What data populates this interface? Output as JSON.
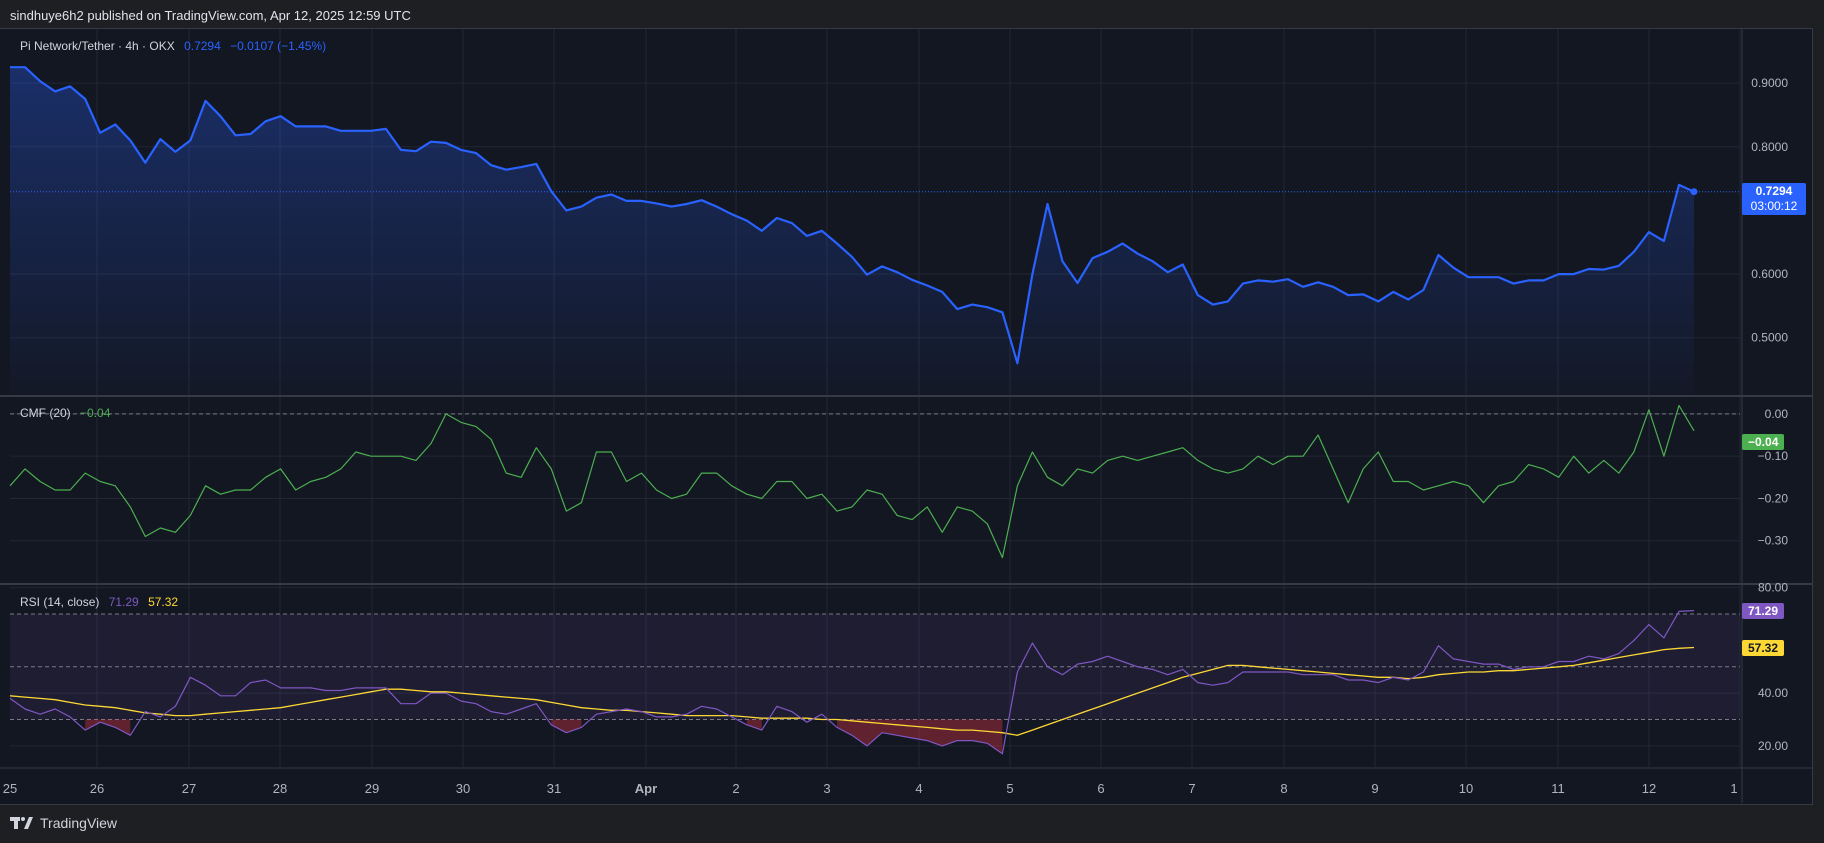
{
  "header": {
    "published": "sindhuye6h2 published on TradingView.com, Apr 12, 2025 12:59 UTC"
  },
  "footer": {
    "brand": "TradingView"
  },
  "colors": {
    "price": "#2962ff",
    "cmf": "#4caf50",
    "rsi": "#7e57c2",
    "rsi_ma": "#fdd835",
    "background": "#131722",
    "grid": "#232734"
  },
  "legends": {
    "price": {
      "symbol": "Pi Network/Tether · 4h · OKX",
      "last": "0.7294",
      "change": "−0.0107 (−1.45%)"
    },
    "cmf": {
      "name": "CMF (20)",
      "value": "−0.04"
    },
    "rsi": {
      "name": "RSI (14, close)",
      "value": "71.29",
      "ma": "57.32"
    }
  },
  "badges": {
    "price": "0.7294",
    "countdown": "03:00:12",
    "cmf": "−0.04",
    "rsi": "71.29",
    "rsi_ma": "57.32"
  },
  "chart_data": [
    {
      "type": "area",
      "title": "Pi Network/Tether · 4h · OKX",
      "x_ticks": [
        "25",
        "26",
        "27",
        "28",
        "29",
        "30",
        "31",
        "Apr",
        "2",
        "3",
        "4",
        "5",
        "6",
        "7",
        "8",
        "9",
        "10",
        "11",
        "12",
        "1"
      ],
      "y_ticks": [
        "0.9000",
        "0.8000",
        "0.6000",
        "0.5000"
      ],
      "y_tick_values": [
        0.9,
        0.8,
        0.6,
        0.5
      ],
      "ylim": [
        0.41,
        0.985
      ],
      "last_value": 0.7294,
      "grid": true,
      "series": [
        {
          "values": [
            0.925,
            0.925,
            0.903,
            0.887,
            0.895,
            0.875,
            0.822,
            0.835,
            0.81,
            0.775,
            0.812,
            0.792,
            0.81,
            0.872,
            0.848,
            0.818,
            0.82,
            0.84,
            0.848,
            0.832,
            0.832,
            0.832,
            0.825,
            0.825,
            0.825,
            0.828,
            0.795,
            0.793,
            0.808,
            0.806,
            0.795,
            0.79,
            0.771,
            0.764,
            0.768,
            0.773,
            0.73,
            0.7,
            0.706,
            0.72,
            0.725,
            0.715,
            0.715,
            0.711,
            0.706,
            0.71,
            0.716,
            0.706,
            0.694,
            0.684,
            0.668,
            0.688,
            0.68,
            0.66,
            0.668,
            0.648,
            0.627,
            0.599,
            0.612,
            0.603,
            0.591,
            0.582,
            0.572,
            0.545,
            0.552,
            0.548,
            0.54,
            0.46,
            0.6,
            0.71,
            0.62,
            0.586,
            0.625,
            0.635,
            0.648,
            0.632,
            0.62,
            0.603,
            0.615,
            0.567,
            0.552,
            0.557,
            0.585,
            0.59,
            0.588,
            0.592,
            0.58,
            0.587,
            0.58,
            0.567,
            0.568,
            0.557,
            0.572,
            0.56,
            0.575,
            0.63,
            0.61,
            0.595,
            0.595,
            0.595,
            0.585,
            0.59,
            0.59,
            0.6,
            0.6,
            0.608,
            0.607,
            0.613,
            0.635,
            0.666,
            0.652,
            0.74,
            0.7294
          ]
        }
      ]
    },
    {
      "type": "line",
      "title": "CMF (20)",
      "y_ticks": [
        "0.00",
        "−0.10",
        "−0.20",
        "−0.30"
      ],
      "y_tick_values": [
        0,
        -0.1,
        -0.2,
        -0.3
      ],
      "ylim": [
        -0.4,
        0.04
      ],
      "zero_line": 0,
      "last_value": -0.04,
      "series": [
        {
          "values": [
            -0.17,
            -0.13,
            -0.16,
            -0.18,
            -0.18,
            -0.14,
            -0.16,
            -0.17,
            -0.22,
            -0.29,
            -0.27,
            -0.28,
            -0.24,
            -0.17,
            -0.19,
            -0.18,
            -0.18,
            -0.15,
            -0.13,
            -0.18,
            -0.16,
            -0.15,
            -0.13,
            -0.09,
            -0.1,
            -0.1,
            -0.1,
            -0.11,
            -0.07,
            0.0,
            -0.02,
            -0.03,
            -0.06,
            -0.14,
            -0.15,
            -0.08,
            -0.13,
            -0.23,
            -0.21,
            -0.09,
            -0.09,
            -0.16,
            -0.14,
            -0.18,
            -0.2,
            -0.19,
            -0.14,
            -0.14,
            -0.17,
            -0.19,
            -0.2,
            -0.16,
            -0.16,
            -0.2,
            -0.19,
            -0.23,
            -0.22,
            -0.18,
            -0.19,
            -0.24,
            -0.25,
            -0.22,
            -0.28,
            -0.22,
            -0.23,
            -0.26,
            -0.34,
            -0.17,
            -0.09,
            -0.15,
            -0.17,
            -0.13,
            -0.14,
            -0.11,
            -0.1,
            -0.11,
            -0.1,
            -0.09,
            -0.08,
            -0.11,
            -0.13,
            -0.14,
            -0.13,
            -0.1,
            -0.12,
            -0.1,
            -0.1,
            -0.05,
            -0.13,
            -0.21,
            -0.13,
            -0.09,
            -0.16,
            -0.16,
            -0.18,
            -0.17,
            -0.16,
            -0.17,
            -0.21,
            -0.17,
            -0.16,
            -0.12,
            -0.13,
            -0.15,
            -0.1,
            -0.14,
            -0.11,
            -0.14,
            -0.09,
            0.01,
            -0.1,
            0.02,
            -0.04
          ]
        }
      ]
    },
    {
      "type": "line",
      "title": "RSI (14, close)",
      "y_ticks": [
        "80.00",
        "40.00",
        "20.00"
      ],
      "y_tick_values": [
        80,
        40,
        20
      ],
      "ylim": [
        12,
        81
      ],
      "bands": [
        70,
        50,
        30
      ],
      "series": [
        {
          "name": "RSI",
          "values": [
            38,
            34,
            32,
            34,
            31,
            26,
            29,
            27,
            24,
            33,
            31,
            35,
            46,
            43,
            39,
            39,
            44,
            45,
            42,
            42,
            42,
            41,
            41,
            42,
            42,
            42,
            36,
            36,
            40,
            40,
            37,
            36,
            33,
            32,
            34,
            36,
            28,
            25,
            27,
            32,
            33,
            34,
            33,
            31,
            31,
            32,
            35,
            34,
            31,
            28,
            26,
            35,
            33,
            29,
            32,
            27,
            24,
            20,
            25,
            24,
            23,
            22,
            20,
            22,
            22,
            21,
            17,
            48,
            59,
            50,
            47,
            51,
            52,
            54,
            52,
            50,
            49,
            47,
            49,
            44,
            43,
            44,
            48,
            48,
            48,
            48,
            47,
            47,
            47,
            45,
            45,
            44,
            46,
            45,
            48,
            58,
            53,
            52,
            51,
            51,
            49,
            50,
            50,
            52,
            52,
            54,
            53,
            55,
            60,
            66,
            61,
            71,
            71.29
          ]
        },
        {
          "name": "MA",
          "values": [
            39,
            38.5,
            38,
            37.5,
            36.5,
            35.5,
            35,
            34.5,
            33.5,
            32.5,
            32,
            31.5,
            31.5,
            32,
            32.5,
            33,
            33.5,
            34,
            34.5,
            35.5,
            36.5,
            37.5,
            38.5,
            39.5,
            40.5,
            41.5,
            41.5,
            41,
            40.5,
            40.5,
            40,
            39.5,
            39,
            38.5,
            38,
            37.5,
            36.5,
            35.5,
            34.5,
            34,
            33.5,
            33.5,
            33,
            32.5,
            32,
            31.5,
            31.5,
            31.5,
            31.5,
            31,
            30.5,
            30.5,
            30.5,
            30.5,
            30,
            30,
            29.5,
            29,
            28.5,
            28,
            27.5,
            27,
            26.5,
            26,
            26,
            25.5,
            25,
            24,
            26,
            28,
            30,
            32,
            34,
            36,
            38,
            40,
            42,
            44,
            46,
            47.5,
            49,
            50.5,
            50.5,
            50,
            49.5,
            49,
            48.5,
            48,
            47.5,
            47,
            46.5,
            46,
            46,
            45.5,
            46,
            47,
            47.5,
            48,
            48,
            48.5,
            48.5,
            49,
            49.5,
            50,
            50.5,
            51.5,
            52.5,
            53.5,
            54.5,
            55.5,
            56.5,
            57,
            57.32
          ]
        }
      ]
    }
  ]
}
